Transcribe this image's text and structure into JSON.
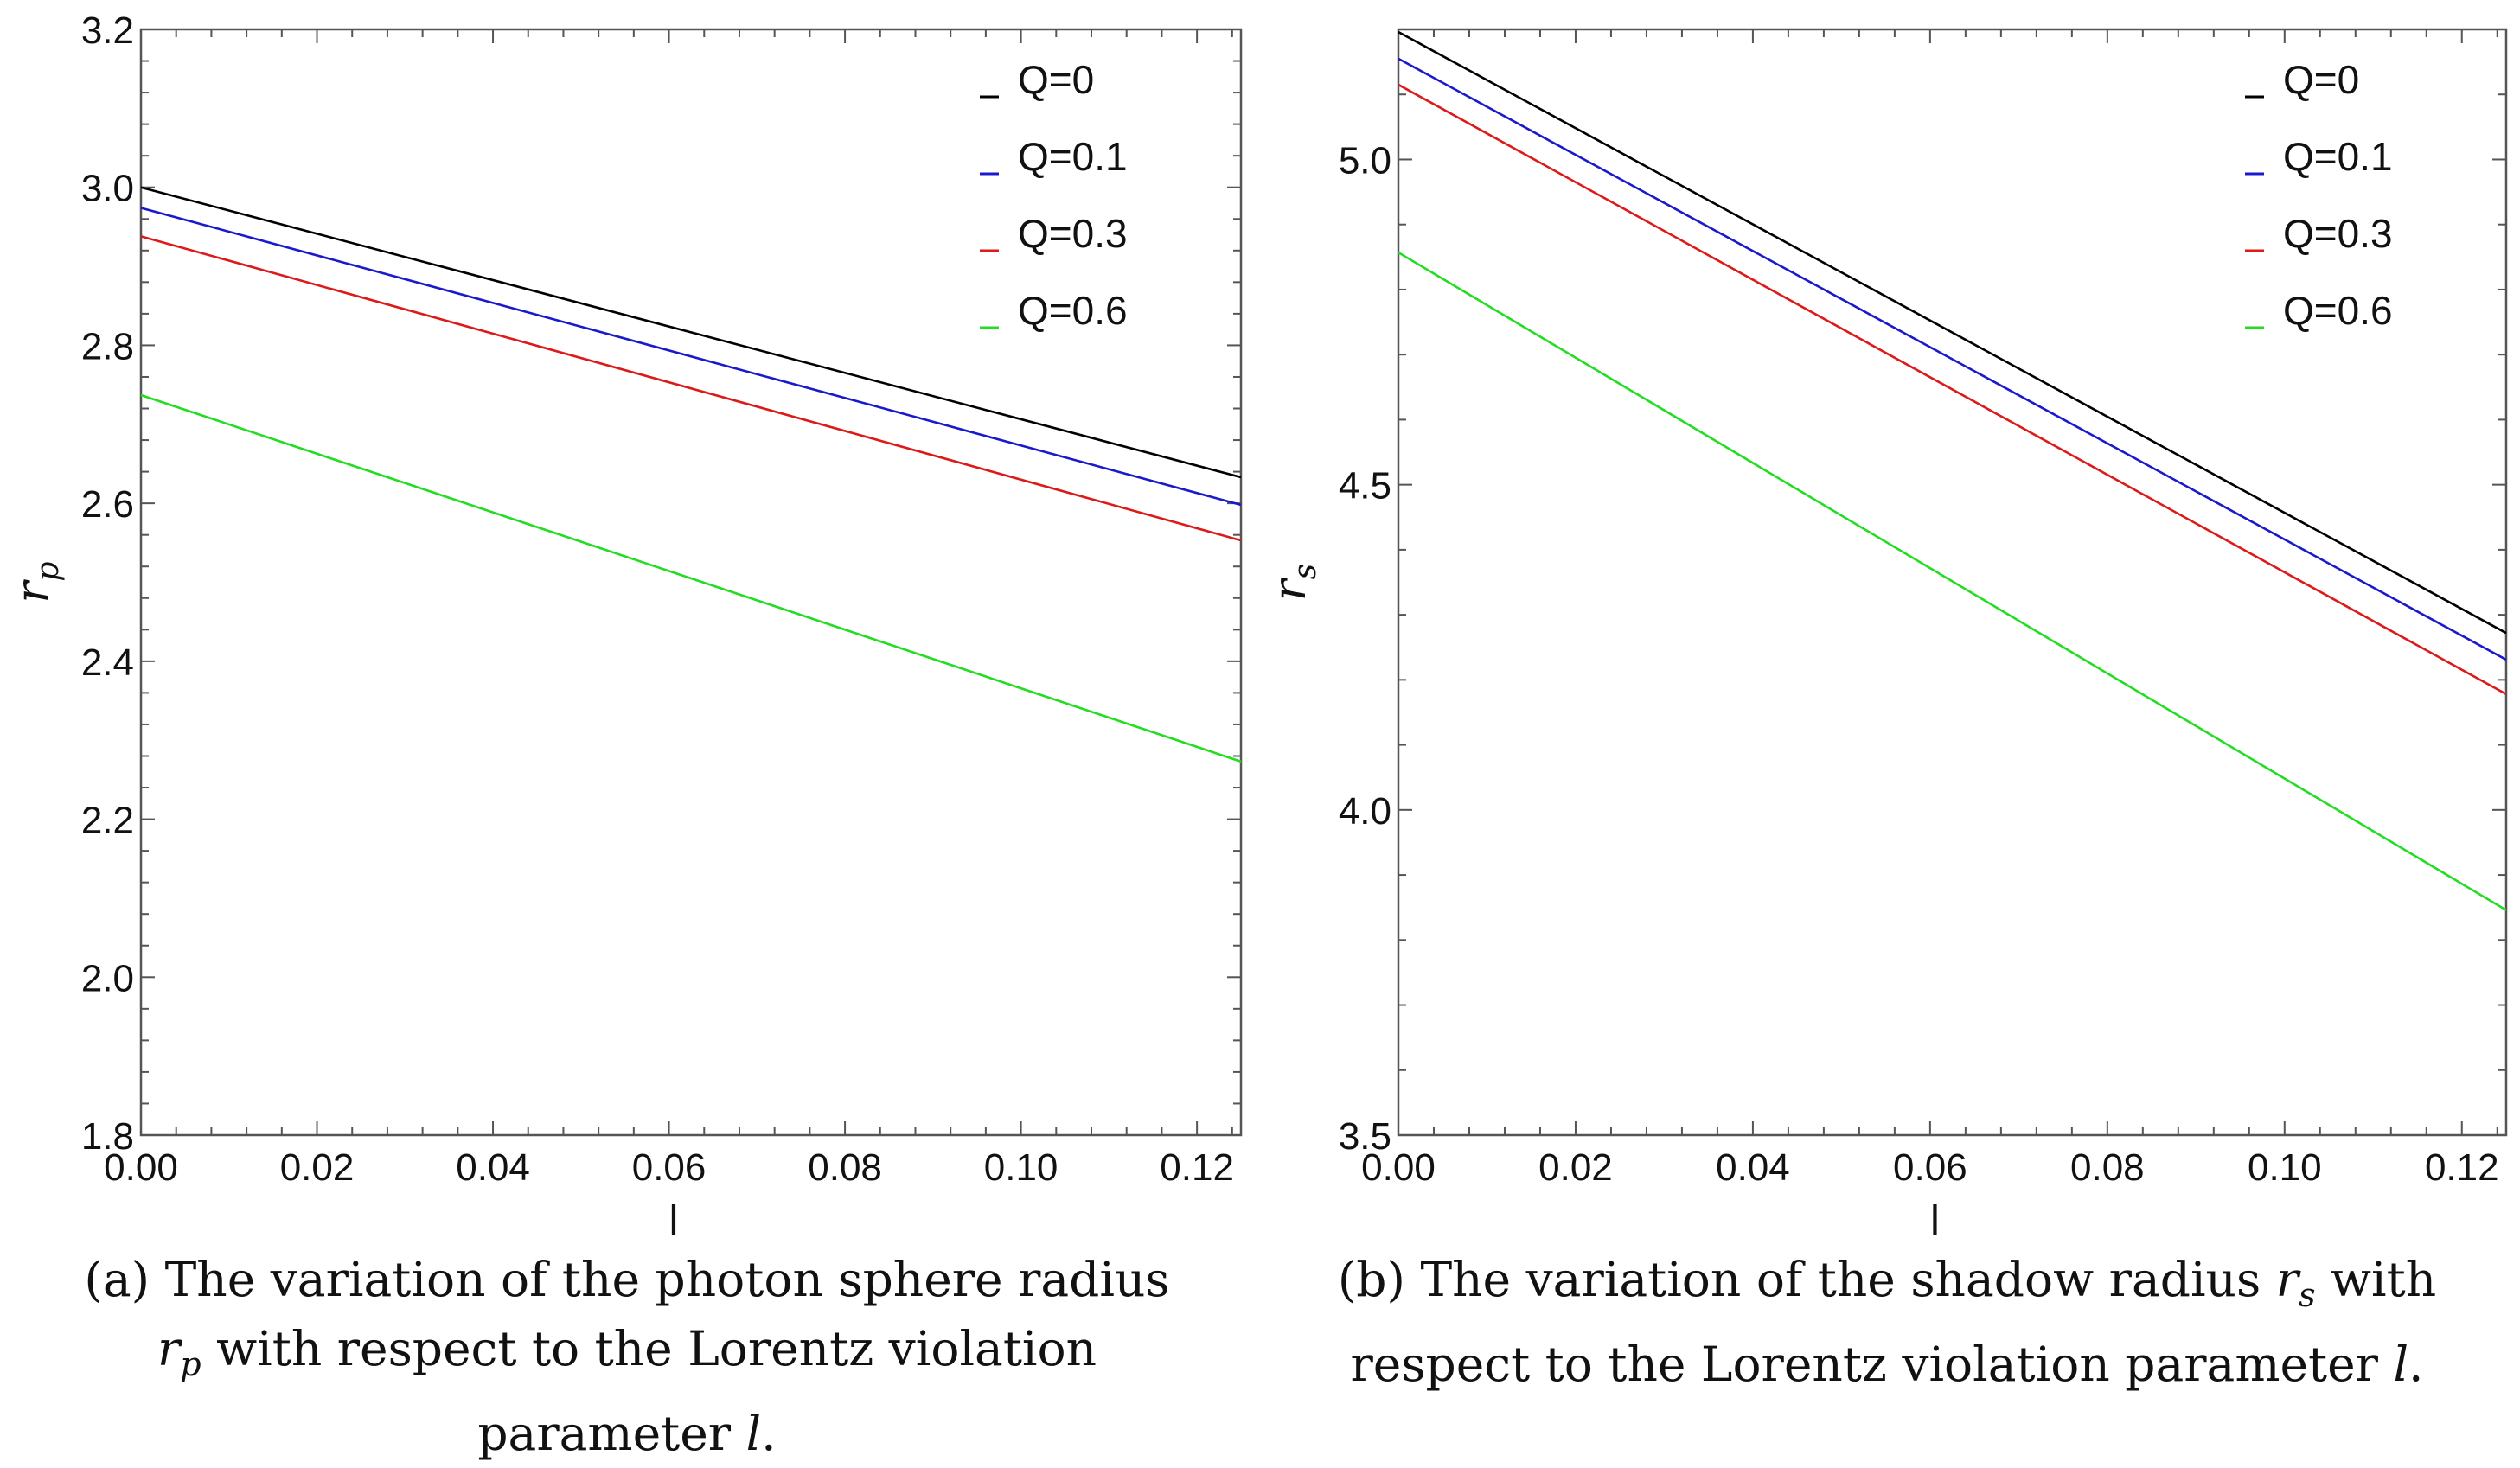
{
  "chart_data": [
    {
      "type": "line",
      "panel": "a",
      "xlabel": "l",
      "ylabel": "r",
      "ylabel_sub": "p",
      "xlim": [
        0,
        0.125
      ],
      "ylim": [
        1.8,
        3.2
      ],
      "xticks": [
        0.0,
        0.02,
        0.04,
        0.06,
        0.08,
        0.1,
        0.12
      ],
      "xtick_labels": [
        "0.00",
        "0.02",
        "0.04",
        "0.06",
        "0.08",
        "0.10",
        "0.12"
      ],
      "yticks": [
        1.8,
        2.0,
        2.2,
        2.4,
        2.6,
        2.8,
        3.0,
        3.2
      ],
      "ytick_labels": [
        "1.8",
        "2.0",
        "2.2",
        "2.4",
        "2.6",
        "2.8",
        "3.0",
        "3.2"
      ],
      "legend_position": "top-right",
      "series": [
        {
          "name": "Q=0",
          "color": "#000000",
          "x": [
            0.0,
            0.125
          ],
          "y": [
            3.0,
            2.633
          ]
        },
        {
          "name": "Q=0.1",
          "color": "#1a1acc",
          "x": [
            0.0,
            0.125
          ],
          "y": [
            2.974,
            2.598
          ]
        },
        {
          "name": "Q=0.3",
          "color": "#dd1a1a",
          "x": [
            0.0,
            0.125
          ],
          "y": [
            2.938,
            2.553
          ]
        },
        {
          "name": "Q=0.6",
          "color": "#22dd22",
          "x": [
            0.0,
            0.125
          ],
          "y": [
            2.737,
            2.273
          ]
        }
      ],
      "caption": {
        "label": "(a)",
        "lines": [
          "The variation of the photon sphere radius",
          "with respect to the Lorentz violation",
          "parameter"
        ],
        "math_var": "r",
        "math_sub": "p",
        "param": "l",
        "end": "."
      }
    },
    {
      "type": "line",
      "panel": "b",
      "xlabel": "l",
      "ylabel": "r",
      "ylabel_sub": "s",
      "xlim": [
        0,
        0.125
      ],
      "ylim": [
        3.5,
        5.2
      ],
      "xticks": [
        0.0,
        0.02,
        0.04,
        0.06,
        0.08,
        0.1,
        0.12
      ],
      "xtick_labels": [
        "0.00",
        "0.02",
        "0.04",
        "0.06",
        "0.08",
        "0.10",
        "0.12"
      ],
      "yticks": [
        3.5,
        4.0,
        4.5,
        5.0
      ],
      "ytick_labels": [
        "3.5",
        "4.0",
        "4.5",
        "5.0"
      ],
      "legend_position": "top-right",
      "series": [
        {
          "name": "Q=0",
          "color": "#000000",
          "x": [
            0.0,
            0.125
          ],
          "y": [
            5.196,
            4.272
          ]
        },
        {
          "name": "Q=0.1",
          "color": "#1a1acc",
          "x": [
            0.0,
            0.125
          ],
          "y": [
            5.155,
            4.231
          ]
        },
        {
          "name": "Q=0.3",
          "color": "#dd1a1a",
          "x": [
            0.0,
            0.125
          ],
          "y": [
            5.115,
            4.178
          ]
        },
        {
          "name": "Q=0.6",
          "color": "#22dd22",
          "x": [
            0.0,
            0.125
          ],
          "y": [
            4.857,
            3.846
          ]
        }
      ],
      "caption": {
        "label": "(b)",
        "lines": [
          "The variation of the shadow radius",
          "with",
          "respect to the Lorentz violation parameter"
        ],
        "math_var": "r",
        "math_sub": "s",
        "param": "l",
        "end": "."
      }
    }
  ]
}
